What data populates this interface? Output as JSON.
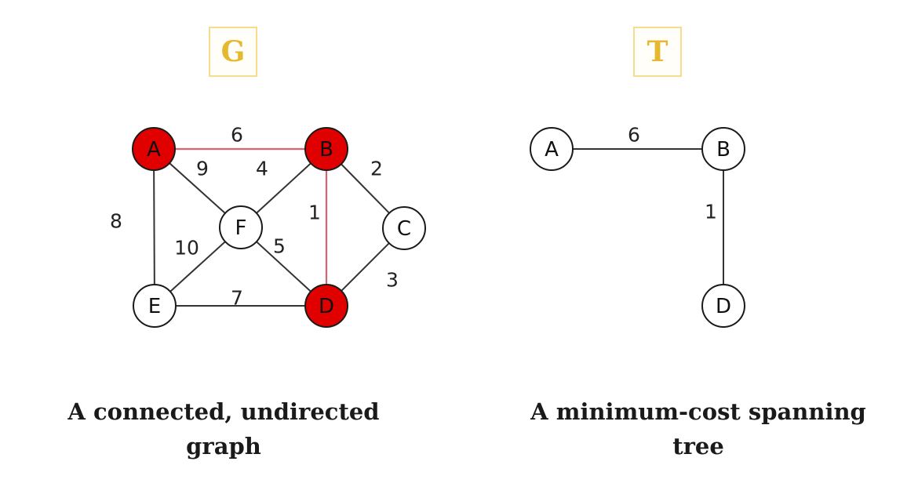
{
  "graph_g": {
    "title": "G",
    "caption_line1": "A connected, undirected",
    "caption_line2": "graph",
    "nodes": [
      {
        "id": "A",
        "label": "A",
        "highlighted": true
      },
      {
        "id": "B",
        "label": "B",
        "highlighted": true
      },
      {
        "id": "C",
        "label": "C",
        "highlighted": false
      },
      {
        "id": "D",
        "label": "D",
        "highlighted": true
      },
      {
        "id": "E",
        "label": "E",
        "highlighted": false
      },
      {
        "id": "F",
        "label": "F",
        "highlighted": false
      }
    ],
    "edges": [
      {
        "from": "A",
        "to": "B",
        "weight": "6",
        "highlighted": true
      },
      {
        "from": "A",
        "to": "F",
        "weight": "9",
        "highlighted": false
      },
      {
        "from": "A",
        "to": "E",
        "weight": "8",
        "highlighted": false
      },
      {
        "from": "B",
        "to": "F",
        "weight": "4",
        "highlighted": false
      },
      {
        "from": "B",
        "to": "C",
        "weight": "2",
        "highlighted": false
      },
      {
        "from": "B",
        "to": "D",
        "weight": "1",
        "highlighted": true
      },
      {
        "from": "F",
        "to": "E",
        "weight": "10",
        "highlighted": false
      },
      {
        "from": "F",
        "to": "D",
        "weight": "5",
        "highlighted": false
      },
      {
        "from": "C",
        "to": "D",
        "weight": "3",
        "highlighted": false
      },
      {
        "from": "E",
        "to": "D",
        "weight": "7",
        "highlighted": false
      }
    ]
  },
  "tree_t": {
    "title": "T",
    "caption_line1": "A minimum-cost spanning",
    "caption_line2": "tree",
    "nodes": [
      {
        "id": "A",
        "label": "A",
        "highlighted": false
      },
      {
        "id": "B",
        "label": "B",
        "highlighted": false
      },
      {
        "id": "D",
        "label": "D",
        "highlighted": false
      }
    ],
    "edges": [
      {
        "from": "A",
        "to": "B",
        "weight": "6",
        "highlighted": false
      },
      {
        "from": "B",
        "to": "D",
        "weight": "1",
        "highlighted": false
      }
    ]
  },
  "colors": {
    "highlight_fill": "#e00000",
    "highlight_edge": "#e06070",
    "edge": "#333333",
    "node_stroke": "#1a1a1a",
    "node_fill": "#ffffff",
    "title_text": "#e6b830",
    "title_border": "#f6dc8c"
  }
}
